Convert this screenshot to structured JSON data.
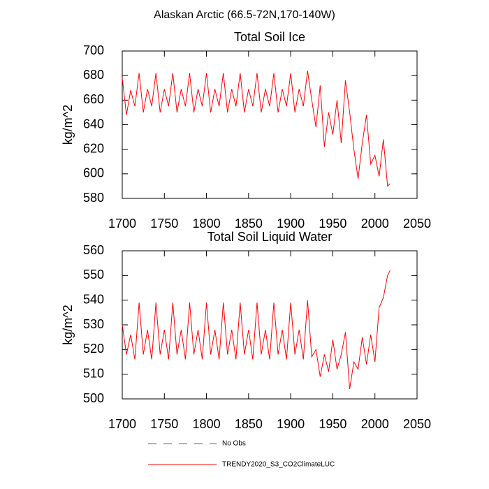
{
  "title": "Alaskan Arctic (66.5-72N,170-140W)",
  "legend": [
    {
      "name": "No Obs",
      "color": "#5a5ab4",
      "dashed": true
    },
    {
      "name": "TRENDY2020_S3_CO2ClimateLUC",
      "color": "#ff0000",
      "dashed": false
    }
  ],
  "chart_data": [
    {
      "type": "line",
      "title": "Total Soil Ice",
      "y_label": "kg/m^2",
      "xlim": [
        1700,
        2050
      ],
      "xticks": [
        1700,
        1750,
        1800,
        1850,
        1900,
        1950,
        2000,
        2050
      ],
      "ylim": [
        580,
        700
      ],
      "yticks": [
        580,
        600,
        620,
        640,
        660,
        680,
        700
      ],
      "x": [
        1700,
        1705,
        1710,
        1715,
        1720,
        1725,
        1730,
        1735,
        1740,
        1745,
        1750,
        1755,
        1760,
        1765,
        1770,
        1775,
        1780,
        1785,
        1790,
        1795,
        1800,
        1805,
        1810,
        1815,
        1820,
        1825,
        1830,
        1835,
        1840,
        1845,
        1850,
        1855,
        1860,
        1865,
        1870,
        1875,
        1880,
        1885,
        1890,
        1895,
        1900,
        1905,
        1910,
        1915,
        1920,
        1925,
        1930,
        1935,
        1940,
        1945,
        1950,
        1955,
        1960,
        1965,
        1970,
        1975,
        1980,
        1985,
        1990,
        1995,
        2000,
        2005,
        2010,
        2015,
        2018
      ],
      "series": [
        {
          "color": "#ff0000",
          "values": [
            678,
            648,
            668,
            655,
            682,
            650,
            669,
            655,
            682,
            650,
            669,
            655,
            682,
            650,
            669,
            655,
            682,
            650,
            669,
            655,
            682,
            650,
            669,
            655,
            682,
            650,
            669,
            655,
            682,
            650,
            669,
            655,
            682,
            650,
            669,
            655,
            682,
            650,
            669,
            655,
            682,
            650,
            669,
            655,
            684,
            660,
            638,
            672,
            622,
            650,
            632,
            660,
            625,
            676,
            650,
            620,
            596,
            625,
            648,
            608,
            615,
            598,
            628,
            590,
            592
          ]
        }
      ]
    },
    {
      "type": "line",
      "title": "Total Soil Liquid Water",
      "y_label": "kg/m^2",
      "xlim": [
        1700,
        2050
      ],
      "xticks": [
        1700,
        1750,
        1800,
        1850,
        1900,
        1950,
        2000,
        2050
      ],
      "ylim": [
        500,
        560
      ],
      "yticks": [
        500,
        510,
        520,
        530,
        540,
        550,
        560
      ],
      "x": [
        1700,
        1705,
        1710,
        1715,
        1720,
        1725,
        1730,
        1735,
        1740,
        1745,
        1750,
        1755,
        1760,
        1765,
        1770,
        1775,
        1780,
        1785,
        1790,
        1795,
        1800,
        1805,
        1810,
        1815,
        1820,
        1825,
        1830,
        1835,
        1840,
        1845,
        1850,
        1855,
        1860,
        1865,
        1870,
        1875,
        1880,
        1885,
        1890,
        1895,
        1900,
        1905,
        1910,
        1915,
        1920,
        1925,
        1930,
        1935,
        1940,
        1945,
        1950,
        1955,
        1960,
        1965,
        1970,
        1975,
        1980,
        1985,
        1990,
        1995,
        2000,
        2005,
        2010,
        2015,
        2018
      ],
      "series": [
        {
          "color": "#ff0000",
          "values": [
            530,
            518,
            526,
            516,
            539,
            518,
            528,
            516,
            539,
            518,
            528,
            516,
            539,
            518,
            528,
            516,
            539,
            518,
            528,
            516,
            539,
            518,
            528,
            516,
            539,
            518,
            528,
            516,
            539,
            518,
            528,
            516,
            539,
            518,
            528,
            516,
            539,
            518,
            528,
            516,
            539,
            518,
            528,
            516,
            540,
            517,
            520,
            509,
            518,
            511,
            524,
            512,
            518,
            527,
            504,
            515,
            512,
            525,
            514,
            526,
            515,
            537,
            541,
            550,
            552
          ]
        }
      ]
    }
  ]
}
